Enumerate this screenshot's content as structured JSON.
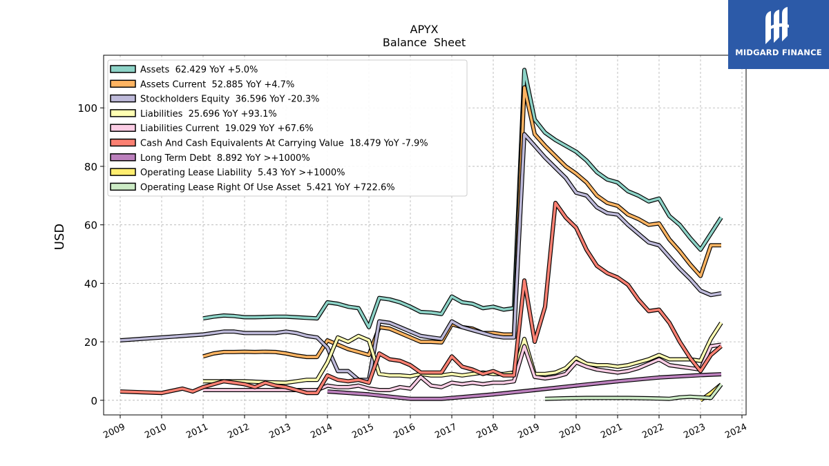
{
  "brand": {
    "name": "MIDGARD FINANCE",
    "bg_color": "#2c5aa8"
  },
  "chart_data": {
    "type": "line",
    "title": "APYX",
    "subtitle": "Balance  Sheet",
    "ylabel": "USD",
    "xlabel": "",
    "xlim": [
      2008.6,
      2024.1
    ],
    "ylim": [
      -5,
      118
    ],
    "yticks": [
      0,
      20,
      40,
      60,
      80,
      100
    ],
    "xticks": [
      2009,
      2010,
      2011,
      2012,
      2013,
      2014,
      2015,
      2016,
      2017,
      2018,
      2019,
      2020,
      2021,
      2022,
      2023,
      2024
    ],
    "grid": true,
    "legend_position": "top-left",
    "series": [
      {
        "name": "Assets",
        "legend": "Assets  62.429 YoY +5.0%",
        "color": "#8dd3c7",
        "x": [
          2011.0,
          2011.25,
          2011.5,
          2011.75,
          2012.0,
          2012.25,
          2012.5,
          2012.75,
          2013.0,
          2013.25,
          2013.5,
          2013.75,
          2014.0,
          2014.25,
          2014.5,
          2014.75,
          2015.0,
          2015.25,
          2015.5,
          2015.75,
          2016.0,
          2016.25,
          2016.5,
          2016.75,
          2017.0,
          2017.25,
          2017.5,
          2017.75,
          2018.0,
          2018.25,
          2018.5,
          2018.75,
          2019.0,
          2019.25,
          2019.5,
          2019.75,
          2020.0,
          2020.25,
          2020.5,
          2020.75,
          2021.0,
          2021.25,
          2021.5,
          2021.75,
          2022.0,
          2022.25,
          2022.5,
          2022.75,
          2023.0,
          2023.25,
          2023.5
        ],
        "y": [
          28,
          28.6,
          29,
          28.8,
          28.4,
          28.4,
          28.5,
          28.6,
          28.6,
          28.4,
          28.2,
          28.0,
          33.5,
          33.0,
          32.0,
          31.5,
          25.0,
          35.0,
          34.5,
          33.5,
          32.0,
          30.2,
          30.0,
          29.5,
          35.5,
          33.5,
          33.0,
          31.5,
          32.0,
          31.0,
          31.5,
          113.0,
          96.0,
          91.5,
          89.0,
          87.0,
          85.0,
          82.0,
          78.0,
          75.5,
          74.5,
          71.5,
          70.0,
          68.0,
          69.0,
          63.0,
          60.0,
          55.5,
          51.5,
          57.0,
          62.5
        ]
      },
      {
        "name": "Assets Current",
        "legend": "Assets Current  52.885 YoY +4.7%",
        "color": "#fdb462",
        "x": [
          2011.0,
          2011.25,
          2011.5,
          2011.75,
          2012.0,
          2012.25,
          2012.5,
          2012.75,
          2013.0,
          2013.25,
          2013.5,
          2013.75,
          2014.0,
          2014.25,
          2014.5,
          2014.75,
          2015.0,
          2015.25,
          2015.5,
          2015.75,
          2016.0,
          2016.25,
          2016.5,
          2016.75,
          2017.0,
          2017.25,
          2017.5,
          2017.75,
          2018.0,
          2018.25,
          2018.5,
          2018.75,
          2019.0,
          2019.25,
          2019.5,
          2019.75,
          2020.0,
          2020.25,
          2020.5,
          2020.75,
          2021.0,
          2021.25,
          2021.5,
          2021.75,
          2022.0,
          2022.25,
          2022.5,
          2022.75,
          2023.0,
          2023.25,
          2023.5
        ],
        "y": [
          15,
          16,
          16.5,
          16.5,
          16.6,
          16.5,
          16.6,
          16.5,
          16.0,
          15.3,
          14.8,
          14.8,
          20.5,
          19.0,
          17.5,
          16.5,
          15.5,
          25.0,
          24.5,
          23.0,
          21.5,
          20.0,
          20.0,
          19.8,
          26.0,
          25.0,
          24.5,
          23.0,
          23.0,
          22.5,
          22.5,
          107.0,
          91.0,
          87.0,
          83.5,
          80.0,
          77.5,
          74.5,
          70.0,
          67.5,
          66.5,
          63.5,
          62.0,
          60.0,
          60.5,
          55.0,
          51.0,
          46.5,
          42.5,
          53.0,
          53.0
        ]
      },
      {
        "name": "Stockholders Equity",
        "legend": "Stockholders Equity  36.596 YoY -20.3%",
        "color": "#bebada",
        "x": [
          2009.0,
          2010.0,
          2011.0,
          2011.25,
          2011.5,
          2011.75,
          2012.0,
          2012.25,
          2012.5,
          2012.75,
          2013.0,
          2013.25,
          2013.5,
          2013.75,
          2014.0,
          2014.25,
          2014.5,
          2014.75,
          2015.0,
          2015.25,
          2015.5,
          2015.75,
          2016.0,
          2016.25,
          2016.5,
          2016.75,
          2017.0,
          2017.25,
          2017.5,
          2017.75,
          2018.0,
          2018.25,
          2018.5,
          2018.75,
          2019.0,
          2019.25,
          2019.5,
          2019.75,
          2020.0,
          2020.25,
          2020.5,
          2020.75,
          2021.0,
          2021.25,
          2021.5,
          2021.75,
          2022.0,
          2022.25,
          2022.5,
          2022.75,
          2023.0,
          2023.25,
          2023.5
        ],
        "y": [
          20.5,
          21.5,
          22.5,
          23.0,
          23.5,
          23.5,
          23.0,
          23.0,
          23.0,
          23.0,
          23.5,
          23.0,
          22.0,
          21.5,
          18.0,
          10.0,
          10.0,
          7.0,
          7.0,
          27.0,
          26.5,
          25.0,
          23.5,
          22.0,
          21.5,
          21.0,
          27.0,
          25.0,
          24.0,
          23.0,
          22.0,
          21.5,
          21.5,
          91.0,
          87.0,
          83.0,
          79.5,
          76.0,
          71.0,
          70.0,
          66.0,
          64.0,
          63.5,
          60.0,
          57.0,
          54.0,
          53.0,
          49.0,
          45.0,
          41.5,
          37.5,
          36.0,
          36.6
        ]
      },
      {
        "name": "Liabilities",
        "legend": "Liabilities  25.696 YoY +93.1%",
        "color": "#ffffb3",
        "x": [
          2011.0,
          2011.5,
          2012.0,
          2012.5,
          2013.0,
          2013.25,
          2013.5,
          2013.75,
          2014.0,
          2014.25,
          2014.5,
          2014.75,
          2015.0,
          2015.25,
          2015.5,
          2015.75,
          2016.0,
          2016.25,
          2016.5,
          2016.75,
          2017.0,
          2017.25,
          2017.5,
          2017.75,
          2018.0,
          2018.25,
          2018.5,
          2018.75,
          2019.0,
          2019.25,
          2019.5,
          2019.75,
          2020.0,
          2020.25,
          2020.5,
          2020.75,
          2021.0,
          2021.25,
          2021.5,
          2021.75,
          2022.0,
          2022.25,
          2022.5,
          2022.75,
          2023.0,
          2023.25,
          2023.5
        ],
        "y": [
          6.5,
          6.5,
          6.5,
          6.2,
          6.0,
          6.5,
          7.0,
          7.0,
          13.0,
          21.5,
          20.0,
          22.0,
          20.5,
          9.0,
          8.5,
          8.5,
          8.2,
          9.0,
          8.5,
          8.5,
          9.0,
          8.5,
          9.0,
          9.5,
          9.0,
          9.0,
          9.5,
          21.0,
          9.0,
          9.0,
          9.5,
          11.0,
          14.5,
          12.5,
          12.0,
          12.0,
          11.5,
          12.0,
          13.0,
          14.0,
          15.5,
          14.0,
          14.0,
          14.0,
          13.5,
          21.0,
          26.5
        ]
      },
      {
        "name": "Liabilities Current",
        "legend": "Liabilities Current  19.029 YoY +67.6%",
        "color": "#fccde5",
        "x": [
          2011.0,
          2011.5,
          2012.0,
          2012.5,
          2013.0,
          2013.25,
          2013.5,
          2013.75,
          2014.0,
          2014.25,
          2014.5,
          2014.75,
          2015.0,
          2015.25,
          2015.5,
          2015.75,
          2016.0,
          2016.25,
          2016.5,
          2016.75,
          2017.0,
          2017.25,
          2017.5,
          2017.75,
          2018.0,
          2018.25,
          2018.5,
          2018.75,
          2019.0,
          2019.25,
          2019.5,
          2019.75,
          2020.0,
          2020.25,
          2020.5,
          2020.75,
          2021.0,
          2021.25,
          2021.5,
          2021.75,
          2022.0,
          2022.25,
          2022.5,
          2022.75,
          2023.0,
          2023.25,
          2023.5
        ],
        "y": [
          3.5,
          3.5,
          3.5,
          3.5,
          3.5,
          3.5,
          3.5,
          3.5,
          5.0,
          4.5,
          4.5,
          5.0,
          4.0,
          3.5,
          3.5,
          4.5,
          4.0,
          8.0,
          5.0,
          4.5,
          6.0,
          5.5,
          6.0,
          5.5,
          6.0,
          6.0,
          6.5,
          18.5,
          8.0,
          7.5,
          8.0,
          9.0,
          13.0,
          11.5,
          10.5,
          10.0,
          9.5,
          10.0,
          11.0,
          12.5,
          14.0,
          12.0,
          11.5,
          11.0,
          10.5,
          18.5,
          19.0
        ]
      },
      {
        "name": "Cash And Cash Equivalents At Carrying Value",
        "legend": "Cash And Cash Equivalents At Carrying Value  18.479 YoY -7.9%",
        "color": "#fb8072",
        "x": [
          2009.0,
          2010.0,
          2010.5,
          2010.75,
          2011.0,
          2011.5,
          2012.0,
          2012.25,
          2012.5,
          2012.75,
          2013.0,
          2013.25,
          2013.5,
          2013.75,
          2014.0,
          2014.25,
          2014.5,
          2014.75,
          2015.0,
          2015.25,
          2015.5,
          2015.75,
          2016.0,
          2016.25,
          2016.5,
          2016.75,
          2017.0,
          2017.25,
          2017.5,
          2017.75,
          2018.0,
          2018.25,
          2018.5,
          2018.75,
          2019.0,
          2019.25,
          2019.5,
          2019.75,
          2020.0,
          2020.25,
          2020.5,
          2020.75,
          2021.0,
          2021.25,
          2021.5,
          2021.75,
          2022.0,
          2022.25,
          2022.5,
          2022.75,
          2023.0,
          2023.25,
          2023.5
        ],
        "y": [
          3.0,
          2.5,
          4.0,
          3.0,
          4.5,
          6.5,
          5.5,
          4.5,
          6.0,
          5.0,
          4.5,
          3.5,
          2.5,
          2.5,
          8.5,
          7.0,
          6.5,
          7.0,
          6.0,
          16.0,
          14.0,
          13.5,
          12.0,
          9.5,
          9.5,
          9.5,
          15.0,
          11.5,
          10.5,
          9.0,
          10.0,
          8.5,
          8.5,
          41.0,
          20.0,
          32.0,
          67.5,
          62.5,
          59.0,
          51.5,
          46.0,
          43.5,
          42.0,
          39.5,
          34.5,
          30.5,
          31.0,
          26.5,
          20.0,
          14.5,
          10.0,
          15.5,
          18.5
        ]
      },
      {
        "name": "Long Term Debt",
        "legend": "Long Term Debt  8.892 YoY >+1000%",
        "color": "#bc80bd",
        "x": [
          2014.0,
          2015.0,
          2016.0,
          2016.75,
          2018.0,
          2019.0,
          2020.0,
          2021.0,
          2022.0,
          2023.0,
          2023.5
        ],
        "y": [
          3.0,
          2.0,
          0.5,
          0.5,
          2.0,
          3.5,
          5.0,
          6.5,
          7.8,
          8.6,
          8.9
        ]
      },
      {
        "name": "Operating Lease Liability",
        "legend": "Operating Lease Liability  5.43 YoY >+1000%",
        "color": "#ffed6f",
        "x": [
          2023.0,
          2023.25,
          2023.5
        ],
        "y": [
          0.0,
          2.5,
          5.43
        ]
      },
      {
        "name": "Operating Lease Right Of Use Asset",
        "legend": "Operating Lease Right Of Use Asset  5.421 YoY +722.6%",
        "color": "#ccebc5",
        "x": [
          2019.25,
          2019.75,
          2020.25,
          2020.75,
          2021.25,
          2021.75,
          2022.0,
          2022.25,
          2022.5,
          2022.75,
          2023.0,
          2023.25,
          2023.5
        ],
        "y": [
          0.5,
          0.7,
          0.8,
          0.8,
          0.8,
          0.7,
          0.6,
          0.5,
          1.0,
          1.2,
          1.0,
          0.8,
          5.42
        ]
      }
    ]
  }
}
